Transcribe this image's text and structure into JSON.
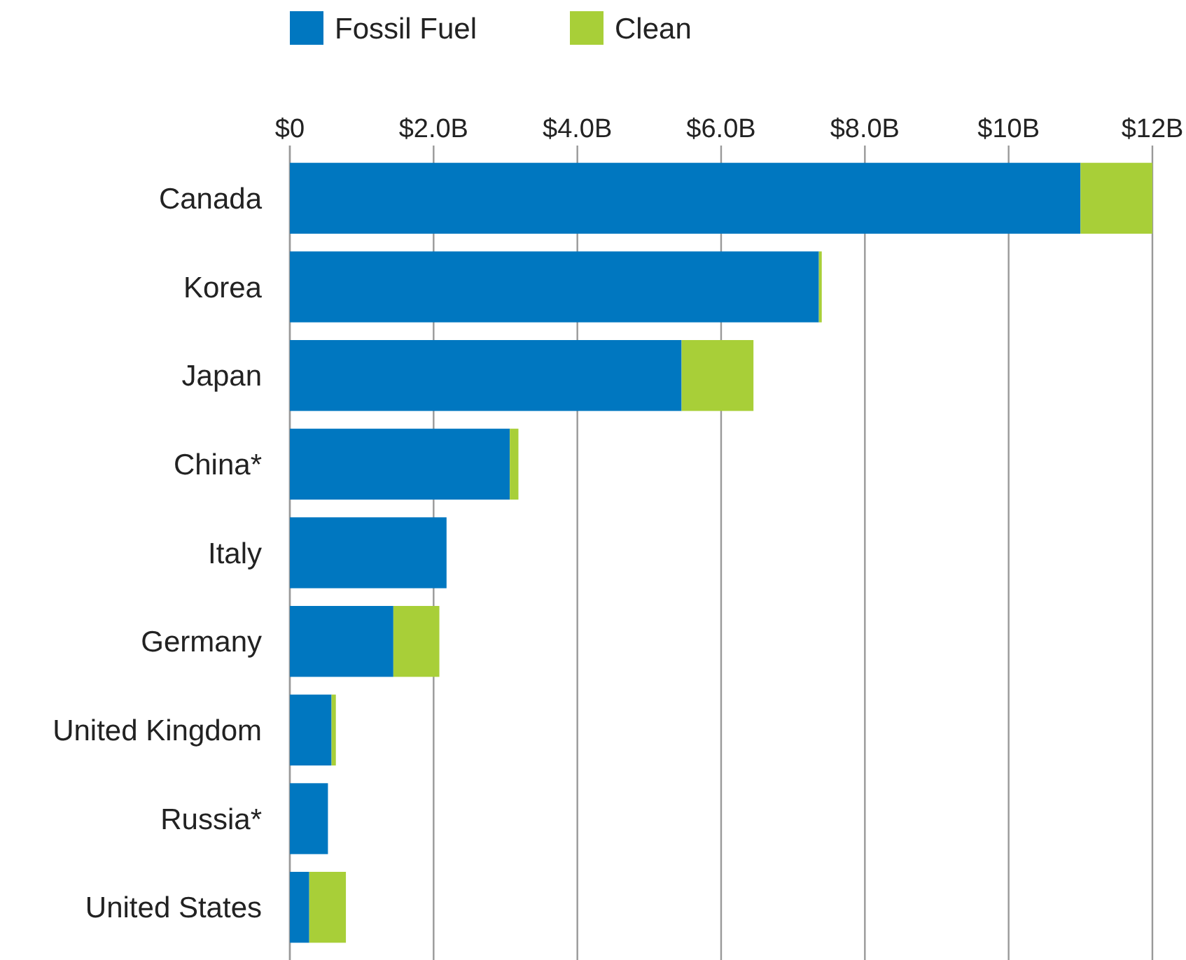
{
  "chart_data": {
    "type": "bar",
    "orientation": "horizontal",
    "stacked": true,
    "categories": [
      "Canada",
      "Korea",
      "Japan",
      "China*",
      "Italy",
      "Germany",
      "United Kingdom",
      "Russia*",
      "United States"
    ],
    "series": [
      {
        "name": "Fossil Fuel",
        "color": "#0077c0",
        "values": [
          11.0,
          7.36,
          5.45,
          3.06,
          2.18,
          1.44,
          0.58,
          0.53,
          0.27
        ]
      },
      {
        "name": "Clean",
        "color": "#a8cf38",
        "values": [
          1.0,
          0.04,
          1.0,
          0.12,
          null,
          0.64,
          0.06,
          null,
          0.51
        ]
      }
    ],
    "xlim": [
      0,
      12
    ],
    "xticks": [
      {
        "value": 0,
        "label": "$0"
      },
      {
        "value": 2,
        "label": "$2.0B"
      },
      {
        "value": 4,
        "label": "$4.0B"
      },
      {
        "value": 6,
        "label": "$6.0B"
      },
      {
        "value": 8,
        "label": "$8.0B"
      },
      {
        "value": 10,
        "label": "$10B"
      },
      {
        "value": 12,
        "label": "$12B"
      }
    ],
    "grid": "x",
    "legend": "top left"
  }
}
